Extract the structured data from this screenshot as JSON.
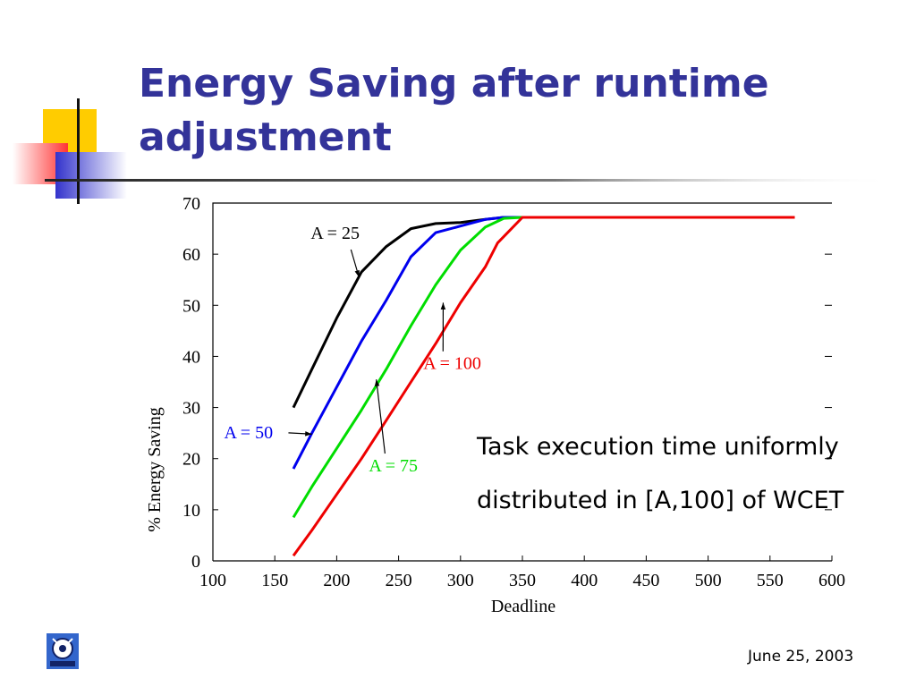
{
  "slide": {
    "title_line1": "Energy Saving after runtime",
    "title_line2": "adjustment",
    "caption_line1": "Task execution time uniformly",
    "caption_line2": "distributed in [A,100] of WCET",
    "date": "June 25, 2003",
    "colors": {
      "title": "#333399",
      "accent_yellow": "#ffcc00",
      "accent_red": "#ff3333",
      "accent_blue": "#3333cc"
    }
  },
  "chart_data": {
    "type": "line",
    "xlabel": "Deadline",
    "ylabel": "% Energy Saving",
    "xlim": [
      100,
      600
    ],
    "ylim": [
      0,
      70
    ],
    "xticks": [
      100,
      150,
      200,
      250,
      300,
      350,
      400,
      450,
      500,
      550,
      600
    ],
    "yticks": [
      0,
      10,
      20,
      30,
      40,
      50,
      60,
      70
    ],
    "grid": false,
    "series": [
      {
        "name": "A = 25",
        "color": "#000000",
        "points": [
          [
            165,
            30
          ],
          [
            180,
            37.5
          ],
          [
            200,
            47.5
          ],
          [
            220,
            56.5
          ],
          [
            240,
            61.5
          ],
          [
            260,
            65
          ],
          [
            280,
            66
          ],
          [
            300,
            66.2
          ],
          [
            320,
            66.8
          ],
          [
            335,
            67.2
          ],
          [
            350,
            67.2
          ],
          [
            570,
            67.2
          ]
        ]
      },
      {
        "name": "A = 50",
        "color": "#0000ee",
        "points": [
          [
            165,
            18
          ],
          [
            180,
            25
          ],
          [
            200,
            34
          ],
          [
            220,
            43
          ],
          [
            240,
            51
          ],
          [
            260,
            59.5
          ],
          [
            280,
            64.2
          ],
          [
            300,
            65.5
          ],
          [
            320,
            66.8
          ],
          [
            335,
            67.2
          ],
          [
            350,
            67.2
          ],
          [
            570,
            67.2
          ]
        ]
      },
      {
        "name": "A = 75",
        "color": "#00dd00",
        "points": [
          [
            165,
            8.5
          ],
          [
            180,
            14.5
          ],
          [
            200,
            22
          ],
          [
            220,
            29.5
          ],
          [
            240,
            37.5
          ],
          [
            260,
            46
          ],
          [
            280,
            54
          ],
          [
            300,
            60.8
          ],
          [
            320,
            65.3
          ],
          [
            335,
            67
          ],
          [
            350,
            67.2
          ],
          [
            570,
            67.2
          ]
        ]
      },
      {
        "name": "A = 100",
        "color": "#ee0000",
        "points": [
          [
            165,
            1
          ],
          [
            180,
            6
          ],
          [
            200,
            13
          ],
          [
            220,
            20
          ],
          [
            240,
            27.5
          ],
          [
            260,
            35
          ],
          [
            280,
            42.5
          ],
          [
            300,
            50.5
          ],
          [
            320,
            57.5
          ],
          [
            330,
            62.2
          ],
          [
            350,
            67.2
          ],
          [
            570,
            67.2
          ]
        ]
      }
    ],
    "annotations": [
      {
        "text": "A = 25",
        "series": 0,
        "color": "#000000",
        "label_at": [
          179,
          63
        ],
        "arrow_to": [
          218,
          55.5
        ]
      },
      {
        "text": "A = 50",
        "series": 1,
        "color": "#0000ee",
        "label_at": [
          109,
          24
        ],
        "arrow_to": [
          180,
          24.8
        ]
      },
      {
        "text": "A = 75",
        "series": 2,
        "color": "#00dd00",
        "label_at": [
          226,
          17.5
        ],
        "arrow_to": [
          232,
          35.5
        ]
      },
      {
        "text": "A = 100",
        "series": 3,
        "color": "#ee0000",
        "label_at": [
          270,
          37.5
        ],
        "arrow_to": [
          286,
          50.5
        ]
      }
    ]
  }
}
